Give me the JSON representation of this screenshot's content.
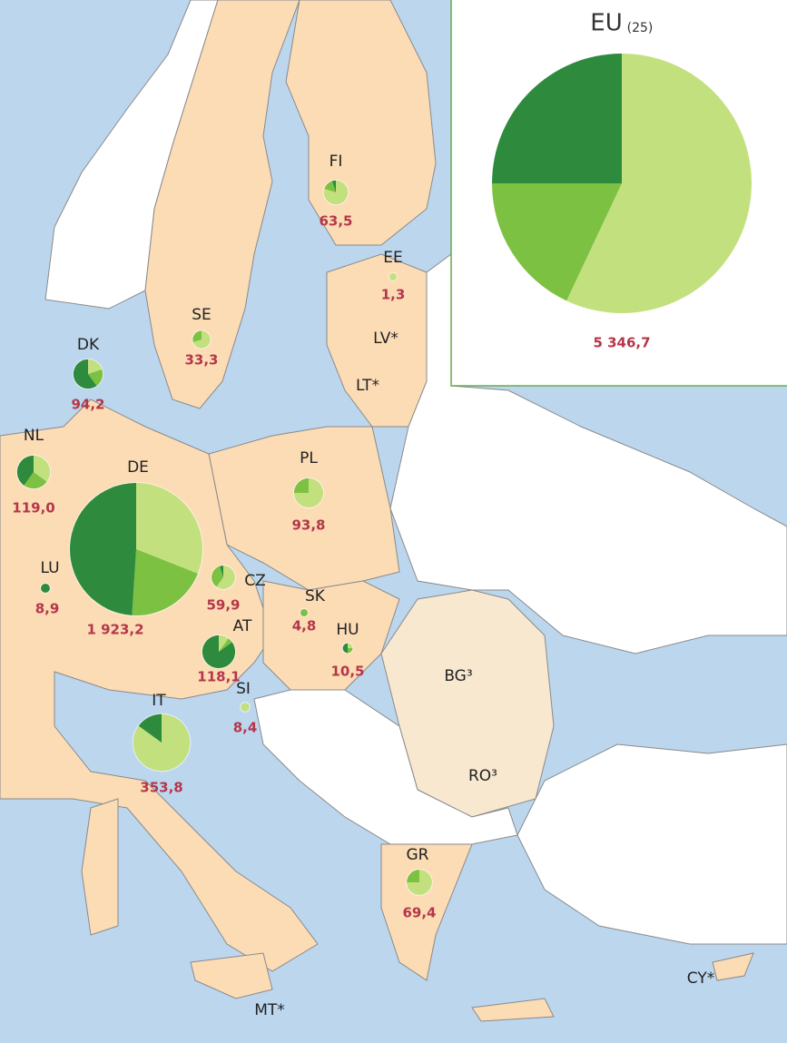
{
  "map": {
    "slice_colors": [
      "#2e8b3e",
      "#7cc142",
      "#c3e07f"
    ],
    "inset": {
      "title": "EU",
      "title_suffix": "(25)",
      "value": 5346.7,
      "label": "5 346,7",
      "shares": [
        25,
        18,
        57
      ]
    },
    "markers": [
      {
        "code": "FI",
        "value": 63.5,
        "label": "63,5",
        "shares": [
          5,
          15,
          80
        ]
      },
      {
        "code": "EE",
        "value": 1.3,
        "label": "1,3",
        "shares": [
          0,
          0,
          100
        ]
      },
      {
        "code": "SE",
        "value": 33.3,
        "label": "33,3",
        "shares": [
          0,
          30,
          70
        ]
      },
      {
        "code": "DK",
        "value": 94.2,
        "label": "94,2",
        "shares": [
          60,
          20,
          20
        ]
      },
      {
        "code": "NL",
        "value": 119.0,
        "label": "119,0",
        "shares": [
          40,
          25,
          35
        ]
      },
      {
        "code": "DE",
        "value": 1923.2,
        "label": "1 923,2",
        "shares": [
          49,
          20,
          31
        ]
      },
      {
        "code": "PL",
        "value": 93.8,
        "label": "93,8",
        "shares": [
          0,
          25,
          75
        ]
      },
      {
        "code": "LU",
        "value": 8.9,
        "label": "8,9",
        "shares": [
          100,
          0,
          0
        ]
      },
      {
        "code": "CZ",
        "value": 59.9,
        "label": "59,9",
        "shares": [
          5,
          35,
          60
        ]
      },
      {
        "code": "SK",
        "value": 4.8,
        "label": "4,8",
        "shares": [
          0,
          100,
          0
        ]
      },
      {
        "code": "AT",
        "value": 118.1,
        "label": "118,1",
        "shares": [
          85,
          5,
          10
        ]
      },
      {
        "code": "HU",
        "value": 10.5,
        "label": "10,5",
        "shares": [
          50,
          25,
          25
        ]
      },
      {
        "code": "SI",
        "value": 8.4,
        "label": "8,4",
        "shares": [
          0,
          0,
          100
        ]
      },
      {
        "code": "IT",
        "value": 353.8,
        "label": "353,8",
        "shares": [
          15,
          0,
          85
        ]
      },
      {
        "code": "GR",
        "value": 69.4,
        "label": "69,4",
        "shares": [
          0,
          25,
          75
        ]
      }
    ],
    "other_labels": [
      "LV*",
      "LT*",
      "BG³",
      "RO³",
      "MT*",
      "CY*"
    ]
  }
}
